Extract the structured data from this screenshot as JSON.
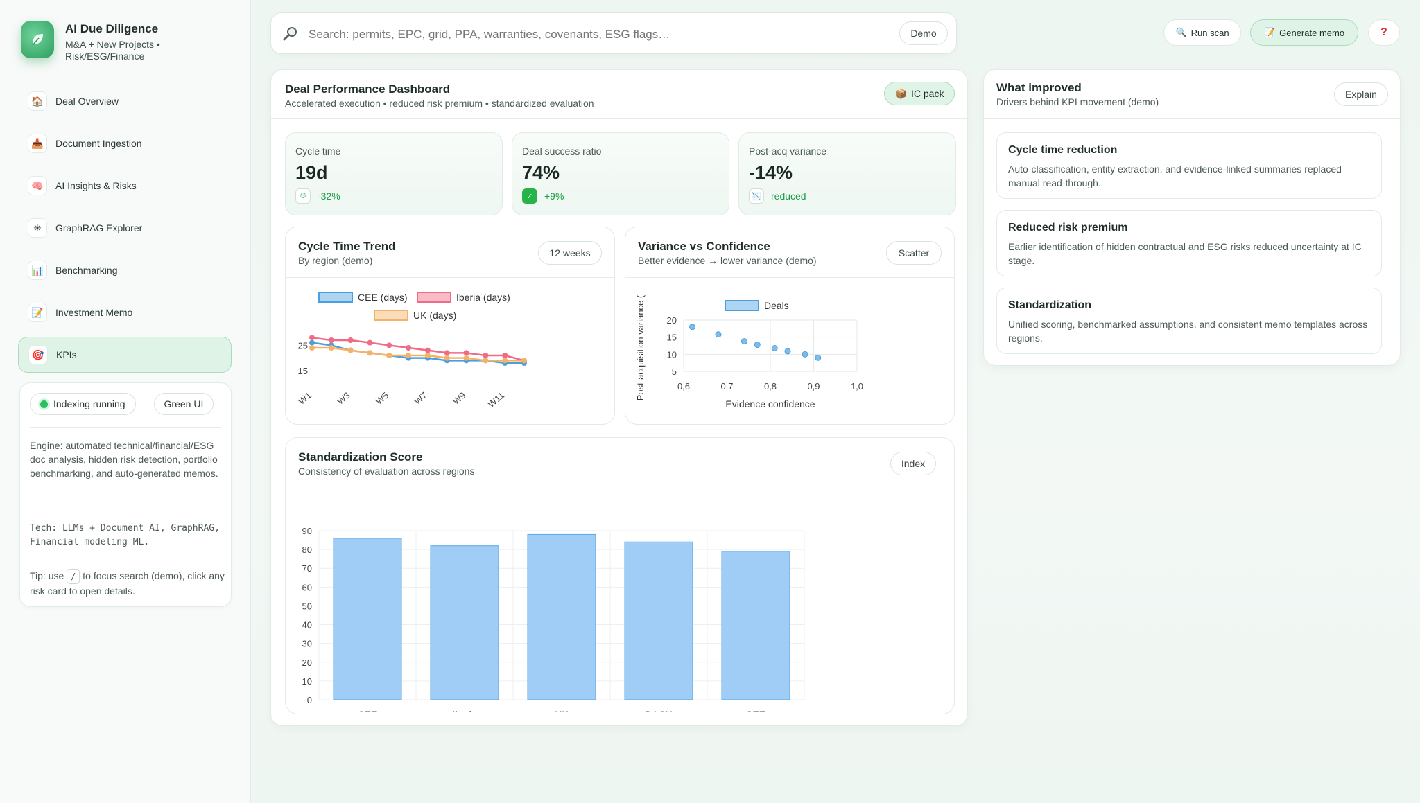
{
  "brand": {
    "title": "AI Due Diligence",
    "subtitle": "M&A + New Projects • Risk/ESG/Finance"
  },
  "nav": [
    {
      "label": "Deal Overview",
      "icon": "house-icon"
    },
    {
      "label": "Document Ingestion",
      "icon": "inbox-icon"
    },
    {
      "label": "AI Insights & Risks",
      "icon": "brain-icon"
    },
    {
      "label": "GraphRAG Explorer",
      "icon": "network-icon"
    },
    {
      "label": "Benchmarking",
      "icon": "bar-chart-icon"
    },
    {
      "label": "Investment Memo",
      "icon": "memo-icon"
    },
    {
      "label": "KPIs",
      "icon": "target-icon",
      "active": true
    }
  ],
  "engine": {
    "status": "Indexing running",
    "theme": "Green UI",
    "description": "Engine: automated technical/financial/ESG doc analysis, hidden risk detection, portfolio benchmarking, and auto-generated memos.",
    "tech": "Tech: LLMs + Document AI, GraphRAG, Financial modeling ML.",
    "tip_prefix": "Tip: use",
    "tip_key": "/",
    "tip_suffix": "to focus search (demo), click any risk card to open details."
  },
  "search": {
    "placeholder": "Search: permits, EPC, grid, PPA, warranties, covenants, ESG flags…",
    "badge": "Demo"
  },
  "top_actions": {
    "run_scan": "Run scan",
    "generate_memo": "Generate memo",
    "help": "?"
  },
  "dashboard": {
    "title": "Deal Performance Dashboard",
    "subtitle": "Accelerated execution • reduced risk premium • standardized evaluation",
    "ic_pack": "IC pack",
    "kpis": [
      {
        "label": "Cycle time",
        "value": "19d",
        "delta": "-32%"
      },
      {
        "label": "Deal success ratio",
        "value": "74%",
        "delta": "+9%"
      },
      {
        "label": "Post-acq variance",
        "value": "-14%",
        "delta": "reduced"
      }
    ]
  },
  "trend_card": {
    "title": "Cycle Time Trend",
    "subtitle": "By region (demo)",
    "chip": "12 weeks"
  },
  "scatter_card": {
    "title": "Variance vs Confidence",
    "subtitle": "Better evidence → lower variance (demo)",
    "chip": "Scatter"
  },
  "std_card": {
    "title": "Standardization Score",
    "subtitle": "Consistency of evaluation across regions",
    "chip": "Index"
  },
  "improved": {
    "title": "What improved",
    "subtitle": "Drivers behind KPI movement (demo)",
    "chip": "Explain",
    "items": [
      {
        "title": "Cycle time reduction",
        "body": "Auto-classification, entity extraction, and evidence-linked summaries replaced manual read-through."
      },
      {
        "title": "Reduced risk premium",
        "body": "Earlier identification of hidden contractual and ESG risks reduced uncertainty at IC stage."
      },
      {
        "title": "Standardization",
        "body": "Unified scoring, benchmarked assumptions, and consistent memo templates across regions."
      }
    ]
  },
  "colors": {
    "accent": "#2e9e5f",
    "cee": "#4a9fe0",
    "iberia": "#ef6b86",
    "uk": "#f5b266",
    "bar": "#9fcdf5"
  },
  "chart_data": [
    {
      "type": "line",
      "title": "",
      "x": [
        "W1",
        "W2",
        "W3",
        "W4",
        "W5",
        "W6",
        "W7",
        "W8",
        "W9",
        "W10",
        "W11",
        "W12"
      ],
      "x_tick_labels": [
        "W1",
        "W3",
        "W5",
        "W7",
        "W9",
        "W11"
      ],
      "y_ticks": [
        15,
        25
      ],
      "ylim": [
        12,
        30
      ],
      "legend": "top",
      "series": [
        {
          "name": "CEE (days)",
          "color": "#4a9fe0",
          "values": [
            26,
            25,
            23,
            22,
            21,
            20,
            20,
            19,
            19,
            19,
            18,
            18
          ]
        },
        {
          "name": "Iberia (days)",
          "color": "#ef6b86",
          "values": [
            28,
            27,
            27,
            26,
            25,
            24,
            23,
            22,
            22,
            21,
            21,
            19
          ]
        },
        {
          "name": "UK (days)",
          "color": "#f5b266",
          "values": [
            24,
            24,
            23,
            22,
            21,
            21,
            21,
            20,
            20,
            19,
            19,
            19
          ]
        }
      ]
    },
    {
      "type": "scatter",
      "xlabel": "Evidence confidence",
      "ylabel": "Post-acquisition variance (",
      "x_tick_labels": [
        "0,6",
        "0,7",
        "0,8",
        "0,9",
        "1,0"
      ],
      "xlim": [
        0.6,
        1.0
      ],
      "y_ticks": [
        5,
        10,
        15,
        20
      ],
      "ylim": [
        5,
        20
      ],
      "legend": "top",
      "series": [
        {
          "name": "Deals",
          "color": "#4a9fe0",
          "points": [
            [
              0.62,
              18
            ],
            [
              0.68,
              15.8
            ],
            [
              0.74,
              13.8
            ],
            [
              0.77,
              12.8
            ],
            [
              0.81,
              11.8
            ],
            [
              0.84,
              10.9
            ],
            [
              0.88,
              10
            ],
            [
              0.91,
              9
            ]
          ]
        }
      ]
    },
    {
      "type": "bar",
      "categories": [
        "CEE",
        "Iberia",
        "UK",
        "DACH",
        "SEE"
      ],
      "values": [
        86,
        82,
        88,
        84,
        79
      ],
      "y_ticks": [
        0,
        10,
        20,
        30,
        40,
        50,
        60,
        70,
        80,
        90
      ],
      "ylim": [
        0,
        90
      ],
      "grid": true
    }
  ]
}
